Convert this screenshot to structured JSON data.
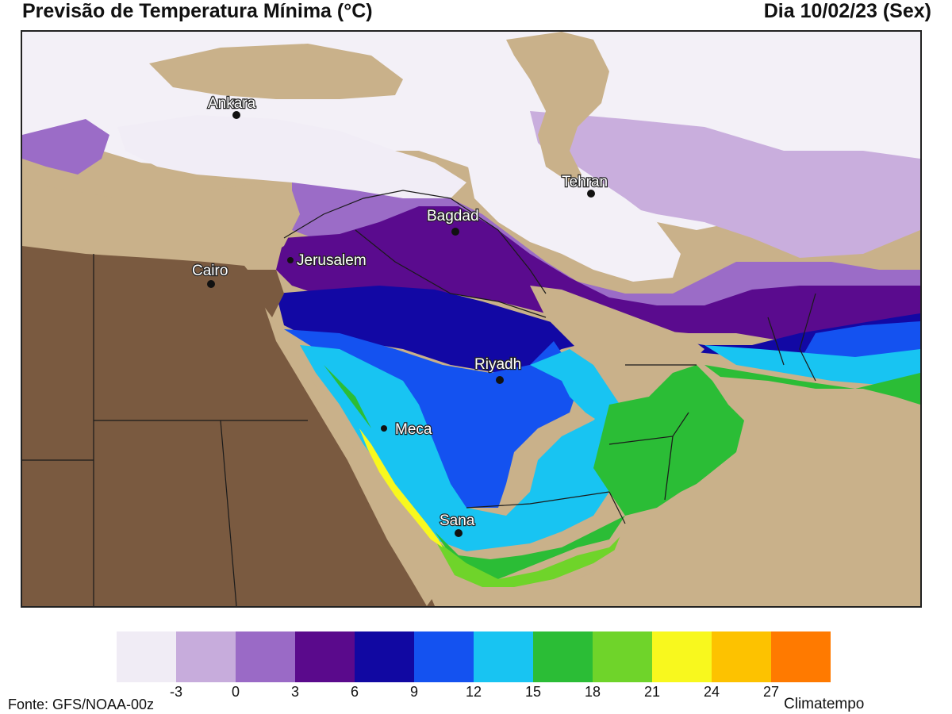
{
  "header": {
    "title": "Previsão de Temperatura Mínima (°C)",
    "date": "Dia 10/02/23 (Sex)"
  },
  "map": {
    "cities": [
      {
        "name": "Ankara"
      },
      {
        "name": "Tehran"
      },
      {
        "name": "Bagdad"
      },
      {
        "name": "Jerusalem"
      },
      {
        "name": "Cairo"
      },
      {
        "name": "Riyadh"
      },
      {
        "name": "Meca"
      },
      {
        "name": "Sana"
      }
    ]
  },
  "legend": {
    "colors": [
      "#f0ecf5",
      "#c7acdc",
      "#9a6ac6",
      "#5a0a8c",
      "#1108a2",
      "#1452f0",
      "#18c4f2",
      "#2bbd36",
      "#6fd42a",
      "#f8f81e",
      "#fdc200",
      "#ff7a00"
    ],
    "ticks": [
      "-3",
      "0",
      "3",
      "6",
      "9",
      "12",
      "15",
      "18",
      "21",
      "24",
      "27"
    ]
  },
  "footer": {
    "source": "Fonte: GFS/NOAA-00z",
    "brand": "Climatempo"
  }
}
